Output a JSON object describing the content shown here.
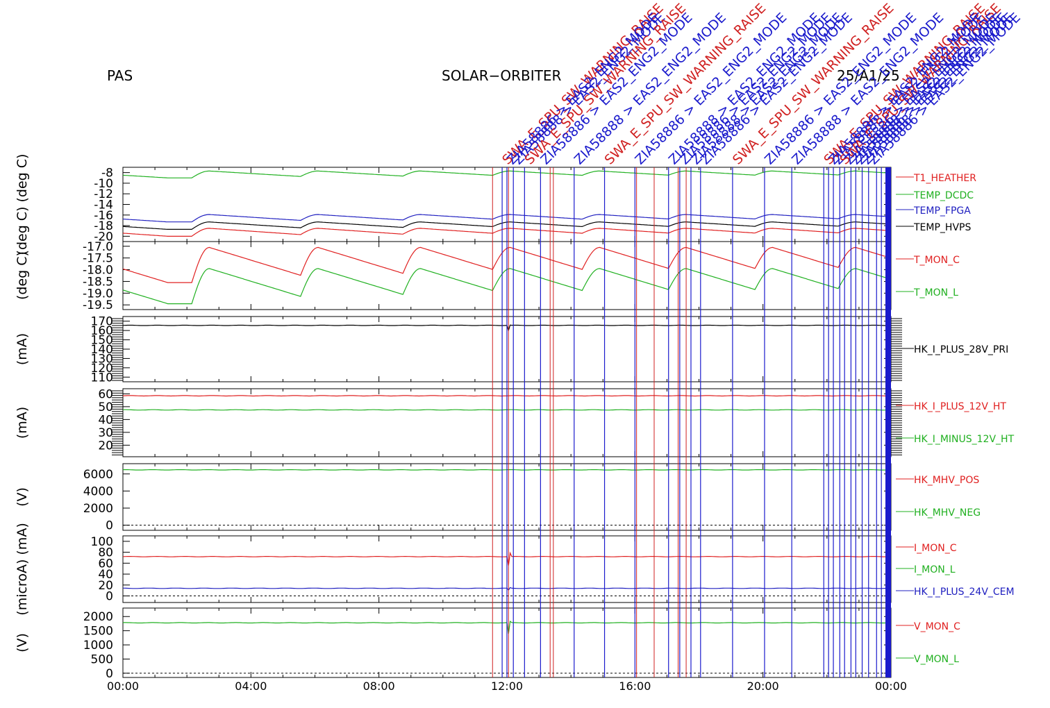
{
  "header": {
    "left": "PAS",
    "center": "SOLAR−ORBITER",
    "right": "25/A1/25"
  },
  "chart_data": {
    "type": "line",
    "x_ticks": [
      "00:00",
      "04:00",
      "08:00",
      "12:00",
      "16:00",
      "20:00",
      "00:00"
    ],
    "xlim_hours": [
      0,
      24
    ],
    "colors": {
      "red": "#e02020",
      "green": "#20b020",
      "blue": "#2020c0",
      "black": "#000000",
      "event_red": "#d02020",
      "event_blue": "#1a1acc"
    },
    "panels": [
      {
        "id": "temps",
        "ylabel": "(deg C)  (deg C)",
        "ylim": [
          -21,
          -7
        ],
        "ticks": [
          "-8",
          "-10",
          "-12",
          "-14",
          "-16",
          "-18",
          "-20"
        ],
        "tick_vals": [
          -8,
          -10,
          -12,
          -14,
          -16,
          -18,
          -20
        ],
        "series": [
          {
            "name": "T1_HEATHER",
            "color": "red",
            "shape": "saw",
            "base": -20.0,
            "amp": 1.5
          },
          {
            "name": "TEMP_DCDC",
            "color": "green",
            "shape": "saw",
            "base": -9.0,
            "amp": 1.3
          },
          {
            "name": "TEMP_FPGA",
            "color": "blue",
            "shape": "saw",
            "base": -17.3,
            "amp": 1.4
          },
          {
            "name": "TEMP_HVPS",
            "color": "black",
            "shape": "saw",
            "base": -18.7,
            "amp": 1.4
          }
        ]
      },
      {
        "id": "tmon",
        "ylabel": "(deg C)",
        "ylim": [
          -19.7,
          -16.8
        ],
        "ticks": [
          "-17.0",
          "-17.5",
          "-18.0",
          "-18.5",
          "-19.0",
          "-19.5"
        ],
        "tick_vals": [
          -17.0,
          -17.5,
          -18.0,
          -18.5,
          -19.0,
          -19.5
        ],
        "series": [
          {
            "name": "T_MON_C",
            "color": "red",
            "shape": "saw",
            "base": -18.55,
            "amp": 1.5
          },
          {
            "name": "T_MON_L",
            "color": "green",
            "shape": "saw",
            "base": -19.45,
            "amp": 1.5
          }
        ]
      },
      {
        "id": "i28",
        "ylabel": "(mA)",
        "ylim": [
          105,
          175
        ],
        "ticks": [
          "170",
          "160",
          "150",
          "140",
          "130",
          "120",
          "110"
        ],
        "tick_vals": [
          170,
          160,
          150,
          140,
          130,
          120,
          110
        ],
        "series": [
          {
            "name": "HK_I_PLUS_28V_PRI",
            "color": "black",
            "shape": "flat",
            "base": 165.5,
            "glitch": [
              -9,
              5
            ]
          }
        ]
      },
      {
        "id": "i12",
        "ylabel": "(mA)",
        "ylim": [
          11,
          64
        ],
        "ticks": [
          "60",
          "50",
          "40",
          "30",
          "20"
        ],
        "tick_vals": [
          60,
          50,
          40,
          30,
          20
        ],
        "series": [
          {
            "name": "HK_I_PLUS_12V_HT",
            "color": "red",
            "shape": "flat",
            "base": 58.5
          },
          {
            "name": "HK_I_MINUS_12V_HT",
            "color": "green",
            "shape": "flat",
            "base": 47.5
          }
        ]
      },
      {
        "id": "mhv",
        "ylabel": "(V)",
        "ylim": [
          -600,
          7200
        ],
        "ticks": [
          "6000",
          "4000",
          "2000",
          "0"
        ],
        "tick_vals": [
          6000,
          4000,
          2000,
          0
        ],
        "series": [
          {
            "name": "HK_MHV_POS",
            "color": "red",
            "shape": "none",
            "base": 0
          },
          {
            "name": "HK_MHV_NEG",
            "color": "green",
            "shape": "flat",
            "base": 6480
          }
        ]
      },
      {
        "id": "imon",
        "ylabel": "(microA)  (mA)",
        "ylim": [
          -12,
          110
        ],
        "ticks": [
          "100",
          "80",
          "60",
          "40",
          "20",
          "0"
        ],
        "tick_vals": [
          100,
          80,
          60,
          40,
          20,
          0
        ],
        "series": [
          {
            "name": "I_MON_C",
            "color": "red",
            "shape": "flat",
            "base": 72,
            "glitch": [
              -30,
              25
            ]
          },
          {
            "name": "I_MON_L",
            "color": "green",
            "shape": "none",
            "base": 0
          },
          {
            "name": "HK_I_PLUS_24V_CEM",
            "color": "blue",
            "shape": "flat",
            "base": 14,
            "glitch": [
              -6,
              5
            ]
          }
        ]
      },
      {
        "id": "vmon",
        "ylabel": "(V)",
        "ylim": [
          -150,
          2300
        ],
        "ticks": [
          "2000",
          "1500",
          "1000",
          "500",
          "0"
        ],
        "tick_vals": [
          2000,
          1500,
          1000,
          500,
          0
        ],
        "series": [
          {
            "name": "V_MON_C",
            "color": "red",
            "shape": "none",
            "base": 0
          },
          {
            "name": "V_MON_L",
            "color": "green",
            "shape": "flat",
            "base": 1780,
            "glitch": [
              -650,
              400
            ]
          }
        ]
      }
    ],
    "saw_peaks_hours": [
      2.7,
      6.1,
      9.3,
      12.1,
      14.9,
      17.6,
      20.3,
      22.9
    ],
    "event_lines_red_hours": [
      11.55,
      12.05,
      13.35,
      13.45,
      16.05,
      16.6,
      17.35,
      17.6
    ],
    "event_lines_blue_hours": [
      11.85,
      12.0,
      12.2,
      12.55,
      13.05,
      14.1,
      15.05,
      16.0,
      17.05,
      17.4,
      17.75,
      18.05,
      19.05,
      20.05,
      20.9,
      21.9,
      22.05,
      22.2,
      22.4,
      22.55,
      22.75,
      22.9,
      23.1,
      23.3,
      23.55,
      23.7,
      23.85,
      23.95
    ],
    "event_label_texts": [
      "SWA_E_SPU_SW_WARNING_RAISE",
      "ZIA58886 > EAS2_ENG2_MODE",
      "ZIA58888 > EAS2_ENG2_MODE",
      "SWA_E_SPU_SW_WARNING_RAISE",
      "ZIA58886 > EAS2_ENG2_MODE",
      "ZIA58888 > EAS2_ENG2_MODE",
      "SWA_E_SPU_SW_WARNING_RAISE",
      "ZIA58886 > EAS2_ENG2_MODE",
      "ZIA58888 > EAS2_ENG2_MODE",
      "ZIA58886 > EAS2_ENG2_MODE",
      "ZIA58888 > EAS2_ENG2_MODE",
      "ZIA58886 > EAS2_ENG2_MODE"
    ]
  }
}
